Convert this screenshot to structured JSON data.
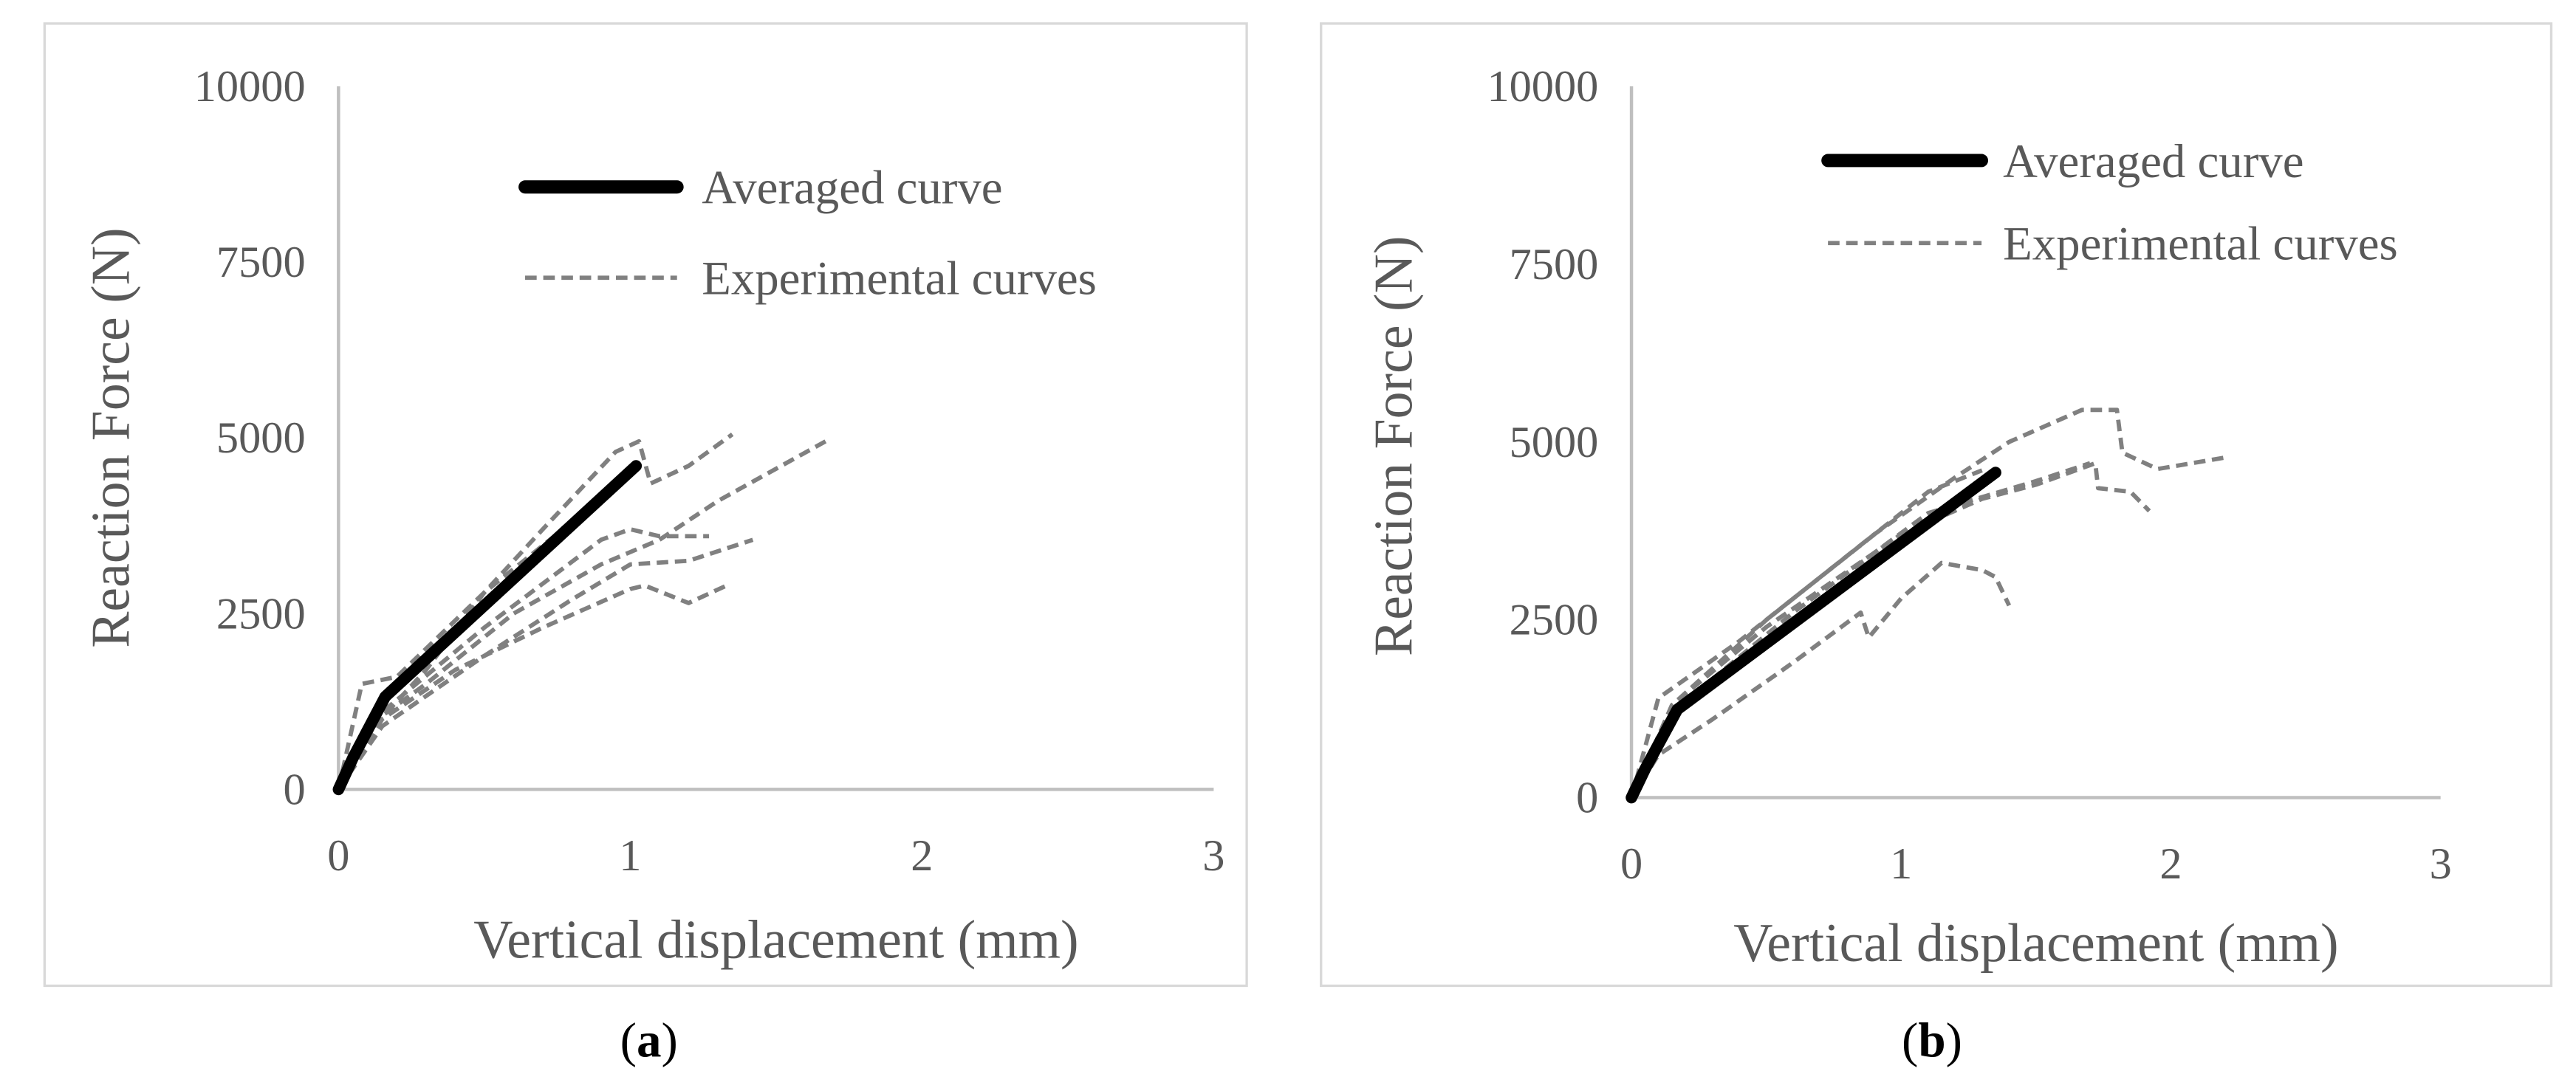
{
  "colors": {
    "averaged": "#000000",
    "experimental": "#808080",
    "axis": "#bfbfbf",
    "text": "#595959",
    "frame": "#d9d9d9"
  },
  "chart_data": [
    {
      "type": "line",
      "panel_label": "a",
      "xlabel": "Vertical displacement (mm)",
      "ylabel": "Reaction Force (N)",
      "xlim": [
        0,
        3
      ],
      "ylim": [
        0,
        10000
      ],
      "xticks": [
        "0",
        "1",
        "2",
        "3"
      ],
      "yticks": [
        "0",
        "2500",
        "5000",
        "7500",
        "10000"
      ],
      "xtick_values": [
        0,
        1,
        2,
        3
      ],
      "ytick_values": [
        0,
        2500,
        5000,
        7500,
        10000
      ],
      "grid": false,
      "legend": {
        "placement": "top-right",
        "entries": [
          "Averaged curve",
          "Experimental curves"
        ]
      },
      "series": [
        {
          "name": "Averaged curve",
          "style": "solid",
          "x": [
            0,
            0.05,
            0.16,
            1.02
          ],
          "y": [
            0,
            450,
            1320,
            4600
          ]
        },
        {
          "name": "Experimental curves",
          "style": "dashed",
          "x": [
            0,
            0.1,
            0.3,
            0.5,
            0.7,
            0.95,
            1.03,
            1.07,
            1.2,
            1.35
          ],
          "y": [
            0,
            800,
            1700,
            2800,
            3700,
            4800,
            4950,
            4350,
            4600,
            5050
          ]
        },
        {
          "name": "Experimental curves",
          "style": "dashed",
          "x": [
            0,
            0.1,
            0.3,
            0.6,
            0.9,
            1.1,
            1.3,
            1.67
          ],
          "y": [
            0,
            900,
            1500,
            2500,
            3200,
            3550,
            4100,
            4950
          ]
        },
        {
          "name": "Experimental curves",
          "style": "dashed",
          "x": [
            0,
            0.15,
            0.5,
            0.9,
            1.0,
            1.1,
            1.27
          ],
          "y": [
            0,
            1100,
            2300,
            3550,
            3700,
            3600,
            3600
          ]
        },
        {
          "name": "Experimental curves",
          "style": "dashed",
          "x": [
            0,
            0.15,
            0.5,
            0.8,
            1.0,
            1.2,
            1.42
          ],
          "y": [
            0,
            900,
            1900,
            2700,
            3200,
            3250,
            3550
          ]
        },
        {
          "name": "Experimental curves",
          "style": "dashed",
          "x": [
            0,
            0.15,
            0.4,
            0.7,
            1.0,
            1.05,
            1.2,
            1.33
          ],
          "y": [
            0,
            1000,
            1700,
            2300,
            2850,
            2900,
            2650,
            2900
          ]
        },
        {
          "name": "Experimental curves",
          "style": "dashed",
          "x": [
            0,
            0.08,
            0.2,
            0.5,
            0.8,
            1.0
          ],
          "y": [
            0,
            1500,
            1600,
            2800,
            3800,
            4500
          ]
        }
      ]
    },
    {
      "type": "line",
      "panel_label": "b",
      "xlabel": "Vertical displacement (mm)",
      "ylabel": "Reaction Force (N)",
      "xlim": [
        0,
        3
      ],
      "ylim": [
        0,
        10000
      ],
      "xticks": [
        "0",
        "1",
        "2",
        "3"
      ],
      "yticks": [
        "0",
        "2500",
        "5000",
        "7500",
        "10000"
      ],
      "xtick_values": [
        0,
        1,
        2,
        3
      ],
      "ytick_values": [
        0,
        2500,
        5000,
        7500,
        10000
      ],
      "grid": false,
      "legend": {
        "placement": "top-right",
        "entries": [
          "Averaged curve",
          "Experimental curves"
        ]
      },
      "series": [
        {
          "name": "Averaged curve",
          "style": "solid",
          "x": [
            0,
            0.05,
            0.17,
            1.35
          ],
          "y": [
            0,
            400,
            1240,
            4570
          ]
        },
        {
          "name": "Experimental curves",
          "style": "dashed",
          "x": [
            0,
            0.15,
            0.5,
            0.9,
            1.2,
            1.4,
            1.67,
            1.8,
            1.82,
            1.95,
            2.2
          ],
          "y": [
            0,
            1300,
            2500,
            3700,
            4500,
            5000,
            5450,
            5450,
            4850,
            4620,
            4780
          ]
        },
        {
          "name": "Experimental curves",
          "style": "dashed",
          "x": [
            0,
            0.15,
            0.5,
            1.0,
            1.3,
            1.5,
            1.72,
            1.73,
            1.85,
            1.92
          ],
          "y": [
            0,
            1300,
            2400,
            3700,
            4200,
            4400,
            4700,
            4350,
            4300,
            4030
          ]
        },
        {
          "name": "Experimental curves",
          "style": "dashed",
          "x": [
            0,
            0.15,
            0.6,
            1.1,
            1.5,
            1.7
          ],
          "y": [
            0,
            1200,
            2600,
            4000,
            4450,
            4700
          ]
        },
        {
          "name": "Experimental curves",
          "style": "dashed",
          "x": [
            0,
            0.1,
            0.3,
            0.6,
            0.85,
            0.88,
            1.0,
            1.15,
            1.3,
            1.35,
            1.4
          ],
          "y": [
            0,
            600,
            1100,
            1900,
            2600,
            2250,
            2800,
            3300,
            3200,
            3100,
            2700
          ]
        },
        {
          "name": "Experimental curves",
          "style": "dashed",
          "x": [
            0,
            0.1,
            0.4,
            0.8,
            1.1,
            1.3
          ],
          "y": [
            0,
            1400,
            2200,
            3400,
            4300,
            4600
          ]
        }
      ]
    }
  ]
}
